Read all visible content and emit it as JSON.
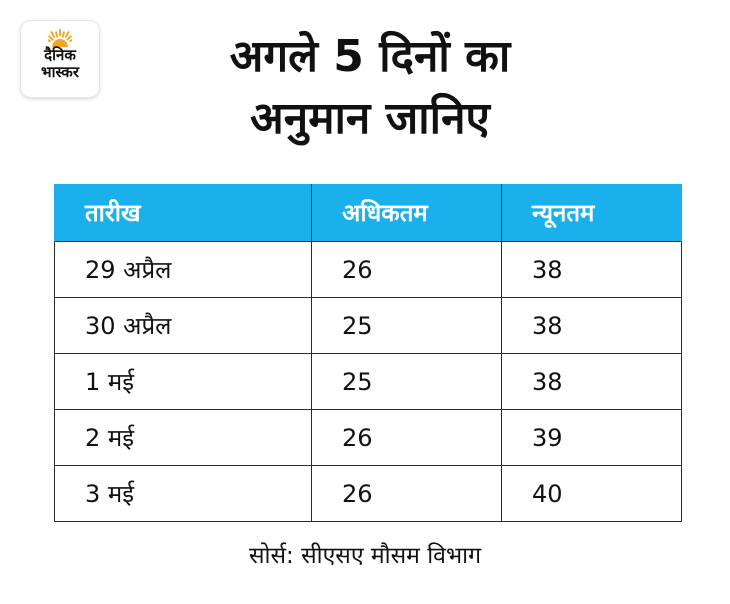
{
  "brand": {
    "logo_line1": "दैनिक",
    "logo_line2": "भास्कर",
    "sun_color": "#f5a623"
  },
  "title": {
    "line1": "अगले 5 दिनों का",
    "line2": "अनुमान जानिए"
  },
  "table": {
    "header_color": "#1ab0ec",
    "headers": [
      "तारीख",
      "अधिकतम",
      "न्यूनतम"
    ],
    "rows": [
      [
        "29 अप्रैल",
        "26",
        "38"
      ],
      [
        "30 अप्रैल",
        "25",
        "38"
      ],
      [
        "1 मई",
        "25",
        "38"
      ],
      [
        "2 मई",
        "26",
        "39"
      ],
      [
        "3 मई",
        "26",
        "40"
      ]
    ]
  },
  "source": "सोर्स: सीएसए मौसम विभाग"
}
